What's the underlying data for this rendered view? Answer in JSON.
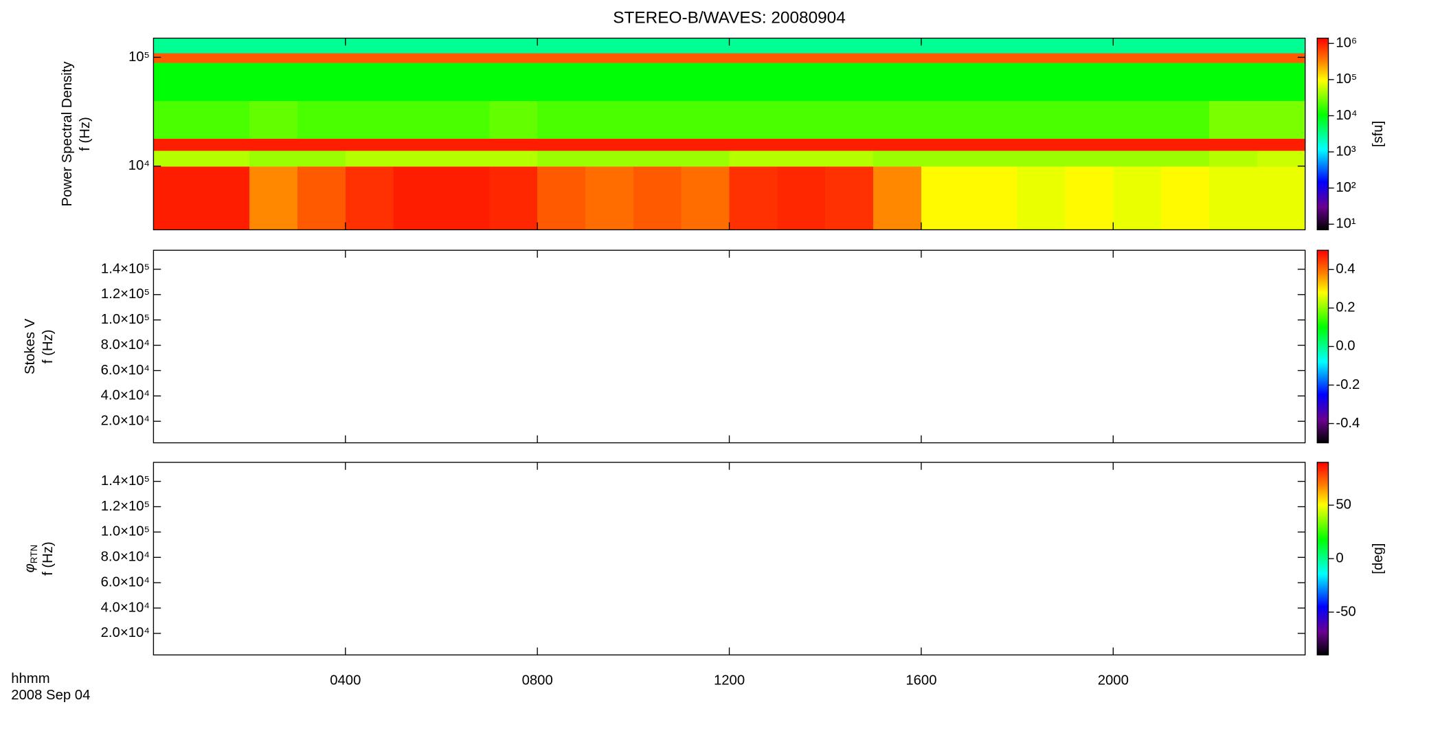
{
  "chart_data": [
    {
      "type": "heatmap",
      "title": "STEREO-B/WAVES: 20080904",
      "ylabel": [
        "Power Spectral Density",
        "f (Hz)"
      ],
      "zlabel": "[sfu]",
      "xlim": [
        0,
        24
      ],
      "xticks": [
        4,
        8,
        12,
        16,
        20
      ],
      "ylim": [
        2600,
        150000
      ],
      "ylog": true,
      "yticks": [
        {
          "value": 10000,
          "label": "10⁴"
        },
        {
          "value": 100000,
          "label": "10⁵"
        }
      ],
      "zlim": [
        7,
        1400000
      ],
      "zlog": true,
      "zticks": [
        {
          "value": 10,
          "label": "10¹"
        },
        {
          "value": 100,
          "label": "10²"
        },
        {
          "value": 1000,
          "label": "10³"
        },
        {
          "value": 10000,
          "label": "10⁴"
        },
        {
          "value": 100000,
          "label": "10⁵"
        },
        {
          "value": 1000000,
          "label": "10⁶"
        }
      ],
      "xbins": [
        0,
        1,
        2,
        3,
        4,
        5,
        6,
        7,
        8,
        9,
        10,
        11,
        12,
        13,
        14,
        15,
        16,
        17,
        18,
        19,
        20,
        21,
        22,
        23,
        24
      ],
      "ybins": [
        2600,
        10000,
        14000,
        18000,
        40000,
        90000,
        110000,
        150000
      ],
      "z": [
        [
          1000000,
          1000000,
          300000,
          500000,
          800000,
          1000000,
          1000000,
          900000,
          500000,
          400000,
          500000,
          400000,
          800000,
          900000,
          800000,
          300000,
          100000,
          100000,
          80000,
          100000,
          80000,
          100000,
          80000,
          80000
        ],
        [
          50000,
          50000,
          40000,
          40000,
          50000,
          50000,
          50000,
          50000,
          40000,
          40000,
          40000,
          40000,
          50000,
          50000,
          50000,
          40000,
          40000,
          40000,
          40000,
          40000,
          40000,
          40000,
          50000,
          60000
        ],
        [
          1000000,
          1000000,
          1000000,
          1000000,
          1000000,
          1000000,
          1000000,
          1000000,
          1000000,
          1000000,
          1000000,
          1000000,
          1000000,
          1000000,
          1000000,
          1000000,
          1000000,
          1000000,
          1000000,
          1000000,
          1000000,
          1000000,
          1000000,
          1000000
        ],
        [
          20000,
          20000,
          25000,
          20000,
          20000,
          20000,
          20000,
          25000,
          20000,
          20000,
          20000,
          20000,
          20000,
          20000,
          20000,
          20000,
          20000,
          20000,
          20000,
          20000,
          20000,
          20000,
          30000,
          30000
        ],
        [
          10000,
          10000,
          10000,
          10000,
          10000,
          10000,
          10000,
          10000,
          10000,
          10000,
          10000,
          10000,
          10000,
          10000,
          10000,
          10000,
          10000,
          10000,
          10000,
          10000,
          10000,
          10000,
          10000,
          10000
        ],
        [
          500000,
          500000,
          500000,
          500000,
          500000,
          500000,
          500000,
          500000,
          500000,
          500000,
          500000,
          500000,
          500000,
          500000,
          500000,
          500000,
          500000,
          500000,
          500000,
          500000,
          500000,
          500000,
          500000,
          500000
        ],
        [
          3000,
          3000,
          3000,
          3000,
          3000,
          3000,
          3000,
          3000,
          3000,
          3000,
          3000,
          3000,
          3000,
          3000,
          3000,
          3000,
          3000,
          3000,
          3000,
          3000,
          3000,
          3000,
          3000,
          3000
        ]
      ]
    },
    {
      "type": "heatmap",
      "ylabel": [
        "Stokes V",
        "f (Hz)"
      ],
      "xlim": [
        0,
        24
      ],
      "xticks": [
        4,
        8,
        12,
        16,
        20
      ],
      "ylim": [
        3000,
        155000
      ],
      "yticks": [
        {
          "value": 20000,
          "label": "2.0×10⁴"
        },
        {
          "value": 40000,
          "label": "4.0×10⁴"
        },
        {
          "value": 60000,
          "label": "6.0×10⁴"
        },
        {
          "value": 80000,
          "label": "8.0×10⁴"
        },
        {
          "value": 100000,
          "label": "1.0×10⁵"
        },
        {
          "value": 120000,
          "label": "1.2×10⁵"
        },
        {
          "value": 140000,
          "label": "1.4×10⁵"
        }
      ],
      "zlim": [
        -0.5,
        0.5
      ],
      "zticks": [
        -0.4,
        -0.2,
        {
          "value": 0,
          "label": "0.0"
        },
        0.2,
        0.4
      ]
    },
    {
      "type": "heatmap",
      "ylabel_symbol": "φ",
      "ylabel_sub": "RTN",
      "ylabel": [
        "f (Hz)"
      ],
      "zlabel": "[deg]",
      "xlabel": "hhmm",
      "date": "2008 Sep 04",
      "xlim": [
        0,
        24
      ],
      "xticks": [
        {
          "value": 4,
          "label": "0400"
        },
        {
          "value": 8,
          "label": "0800"
        },
        {
          "value": 12,
          "label": "1200"
        },
        {
          "value": 16,
          "label": "1600"
        },
        {
          "value": 20,
          "label": "2000"
        }
      ],
      "ylim": [
        3000,
        155000
      ],
      "yticks": [
        {
          "value": 20000,
          "label": "2.0×10⁴"
        },
        {
          "value": 40000,
          "label": "4.0×10⁴"
        },
        {
          "value": 60000,
          "label": "6.0×10⁴"
        },
        {
          "value": 80000,
          "label": "8.0×10⁴"
        },
        {
          "value": 100000,
          "label": "1.0×10⁵"
        },
        {
          "value": 120000,
          "label": "1.2×10⁵"
        },
        {
          "value": 140000,
          "label": "1.4×10⁵"
        }
      ],
      "zlim": [
        -90,
        90
      ],
      "zticks": [
        -50,
        0,
        50
      ]
    }
  ]
}
